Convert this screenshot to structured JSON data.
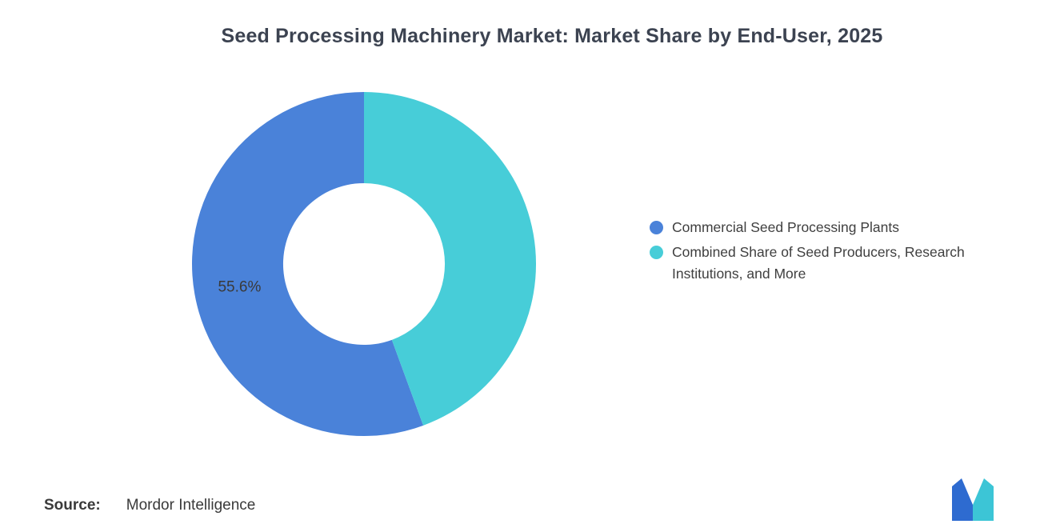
{
  "title": "Seed Processing Machinery Market: Market Share by End-User, 2025",
  "chart_data": {
    "type": "pie",
    "title": "Seed Processing Machinery Market: Market Share by End-User, 2025",
    "donut": true,
    "inner_radius_ratio": 0.47,
    "start_angle_deg": 0,
    "direction": "counterclockwise",
    "legend_position": "right",
    "slices": [
      {
        "name": "Commercial Seed Processing Plants",
        "value": 55.6,
        "color": "#4A82D9",
        "label": "55.6%"
      },
      {
        "name": "Combined Share of Seed Producers, Research Institutions, and More",
        "value": 44.4,
        "color": "#47CDD8",
        "label": ""
      }
    ]
  },
  "source": {
    "prefix": "Source:",
    "text": "Mordor Intelligence"
  },
  "logo": {
    "name": "mordor-intelligence-logo",
    "colors": {
      "blue": "#2E6BD0",
      "teal": "#3CC5D6"
    }
  }
}
